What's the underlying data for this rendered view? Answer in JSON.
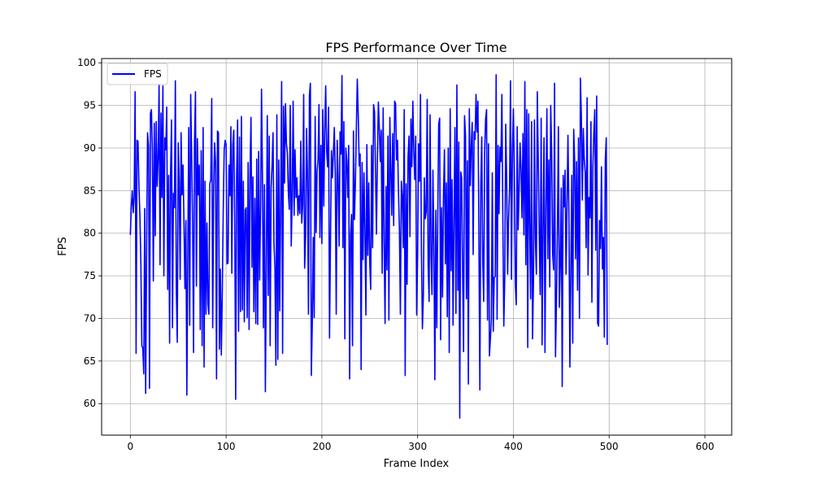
{
  "chart_data": {
    "type": "line",
    "title": "FPS Performance Over Time",
    "xlabel": "Frame Index",
    "ylabel": "FPS",
    "xlim": [
      -30,
      628
    ],
    "ylim": [
      56.3,
      100.5
    ],
    "x_ticks": [
      0,
      100,
      200,
      300,
      400,
      500,
      600
    ],
    "y_ticks": [
      60,
      65,
      70,
      75,
      80,
      85,
      90,
      95,
      100
    ],
    "grid": true,
    "legend_position": "top-left",
    "colors": {
      "series": "#0000ff",
      "grid": "#b0b0b0",
      "frame": "#000000"
    },
    "series": [
      {
        "name": "FPS",
        "x_start": 0,
        "x_step": 1,
        "values": [
          79.8,
          83.1,
          85.0,
          82.4,
          84.3,
          96.6,
          65.9,
          90.9,
          90.8,
          85.4,
          82.0,
          76.3,
          66.8,
          66.5,
          63.5,
          82.9,
          61.2,
          78.9,
          91.8,
          90.2,
          61.8,
          94.1,
          94.5,
          89.8,
          74.4,
          92.9,
          79.7,
          93.1,
          85.5,
          88.7,
          97.4,
          76.3,
          94.1,
          84.2,
          97.3,
          75.0,
          91.2,
          89.8,
          94.8,
          73.4,
          86.8,
          67.1,
          87.0,
          93.3,
          68.9,
          84.7,
          83.0,
          97.9,
          73.5,
          67.2,
          90.6,
          86.0,
          74.6,
          91.8,
          84.5,
          88.0,
          81.3,
          73.5,
          81.5,
          61.0,
          77.7,
          92.4,
          69.2,
          96.3,
          89.2,
          81.3,
          66.0,
          90.6,
          96.6,
          73.8,
          91.1,
          84.5,
          88.0,
          68.7,
          89.7,
          66.8,
          92.4,
          64.3,
          86.1,
          70.5,
          81.2,
          71.7,
          70.5,
          85.8,
          86.3,
          95.8,
          68.9,
          85.1,
          90.6,
          88.2,
          62.9,
          92.0,
          91.8,
          66.4,
          75.8,
          65.7,
          72.8,
          82.6,
          89.8,
          90.9,
          90.4,
          76.4,
          76.5,
          88.0,
          84.4,
          92.5,
          75.3,
          90.4,
          92.1,
          81.6,
          60.5,
          86.8,
          93.3,
          68.5,
          91.3,
          70.8,
          93.7,
          71.0,
          86.1,
          69.6,
          82.7,
          83.0,
          70.1,
          88.3,
          68.7,
          87.2,
          93.6,
          76.0,
          86.6,
          70.8,
          84.1,
          69.4,
          88.7,
          69.3,
          89.6,
          74.5,
          83.0,
          96.9,
          86.0,
          68.9,
          85.7,
          61.4,
          75.6,
          93.8,
          72.7,
          91.4,
          66.8,
          85.3,
          87.9,
          91.8,
          78.9,
          75.8,
          64.5,
          93.9,
          65.2,
          88.6,
          70.9,
          83.8,
          97.8,
          65.9,
          94.9,
          85.9,
          95.2,
          90.5,
          89.4,
          84.8,
          82.8,
          95.0,
          78.5,
          84.0,
          95.5,
          82.1,
          89.8,
          84.2,
          86.5,
          82.1,
          84.4,
          82.3,
          90.8,
          81.2,
          83.4,
          96.3,
          75.9,
          79.6,
          92.3,
          86.8,
          70.5,
          96.2,
          97.6,
          63.3,
          69.3,
          79.5,
          70.1,
          93.7,
          80.1,
          87.3,
          88.6,
          95.1,
          79.5,
          90.3,
          78.8,
          94.5,
          83.2,
          92.2,
          97.3,
          89.6,
          87.8,
          94.8,
          67.7,
          79.1,
          89.7,
          86.5,
          89.4,
          92.4,
          86.8,
          70.5,
          90.9,
          86.7,
          78.5,
          91.9,
          89.3,
          98.5,
          78.3,
          93.1,
          67.6,
          90.0,
          88.5,
          84.2,
          90.3,
          62.9,
          79.8,
          82.2,
          66.8,
          92.0,
          81.6,
          85.8,
          92.2,
          98.1,
          93.8,
          87.9,
          89.3,
          64.0,
          88.3,
          76.9,
          87.1,
          80.2,
          70.4,
          90.4,
          77.4,
          85.9,
          76.5,
          73.4,
          90.3,
          78.3,
          95.1,
          94.2,
          87.6,
          79.9,
          88.6,
          95.4,
          92.4,
          88.4,
          92.1,
          75.3,
          94.7,
          79.0,
          69.4,
          85.5,
          75.7,
          91.4,
          69.8,
          93.6,
          87.4,
          82.1,
          91.7,
          80.9,
          95.5,
          95.2,
          88.6,
          90.9,
          84.9,
          80.3,
          70.5,
          86.1,
          84.4,
          78.3,
          94.5,
          63.3,
          85.8,
          74.0,
          88.9,
          91.4,
          79.6,
          93.4,
          87.8,
          95.5,
          89.7,
          86.3,
          91.4,
          70.4,
          77.5,
          90.5,
          86.1,
          96.3,
          77.7,
          68.8,
          72.7,
          86.5,
          81.7,
          82.5,
          95.7,
          76.3,
          72.0,
          93.9,
          77.3,
          72.8,
          87.4,
          78.4,
          62.8,
          82.7,
          68.9,
          81.5,
          92.8,
          93.5,
          67.5,
          83.0,
          72.5,
          84.3,
          89.8,
          76.4,
          85.9,
          70.2,
          90.0,
          66.0,
          94.6,
          75.6,
          86.3,
          69.2,
          81.8,
          92.4,
          70.6,
          97.4,
          73.3,
          90.7,
          58.3,
          87.2,
          86.5,
          75.4,
          66.1,
          93.8,
          91.4,
          72.3,
          88.5,
          62.3,
          94.6,
          85.6,
          90.2,
          93.0,
          77.5,
          91.9,
          91.0,
          96.3,
          91.9,
          95.5,
          79.6,
          61.6,
          85.6,
          91.3,
          76.6,
          72.0,
          89.4,
          93.4,
          94.5,
          69.8,
          90.5,
          65.6,
          67.6,
          69.9,
          87.1,
          68.5,
          74.8,
          74.9,
          98.6,
          69.9,
          90.3,
          82.3,
          90.1,
          88.4,
          96.3,
          81.6,
          69.1,
          74.8,
          92.8,
          86.4,
          75.2,
          81.5,
          85.2,
          97.9,
          74.6,
          89.6,
          94.6,
          87.3,
          74.2,
          71.6,
          92.5,
          80.4,
          85.2,
          90.6,
          87.4,
          81.8,
          91.7,
          79.8,
          97.8,
          76.3,
          94.5,
          66.6,
          94.0,
          81.0,
          72.3,
          93.1,
          67.6,
          74.4,
          93.3,
          79.1,
          75.2,
          96.6,
          88.6,
          80.0,
          72.8,
          93.5,
          66.9,
          80.8,
          91.2,
          66.0,
          82.6,
          94.6,
          77.0,
          88.6,
          73.7,
          95.0,
          89.5,
          77.6,
          75.7,
          97.6,
          65.5,
          72.0,
          80.5,
          92.5,
          71.3,
          76.0,
          85.3,
          62.0,
          86.8,
          83.1,
          87.4,
          75.2,
          83.0,
          91.5,
          82.5,
          64.3,
          75.6,
          86.8,
          67.1,
          92.2,
          88.4,
          77.0,
          88.4,
          73.3,
          91.2,
          70.0,
          98.2,
          93.8,
          83.9,
          92.3,
          88.7,
          87.2,
          78.3,
          95.9,
          75.1,
          84.2,
          81.8,
          93.1,
          71.9,
          87.8,
          91.7,
          94.5,
          78.0,
          96.1,
          69.4,
          69.1,
          81.5,
          78.2,
          87.8,
          75.8,
          79.5,
          67.8,
          88.6,
          91.2,
          66.9
        ]
      }
    ]
  }
}
